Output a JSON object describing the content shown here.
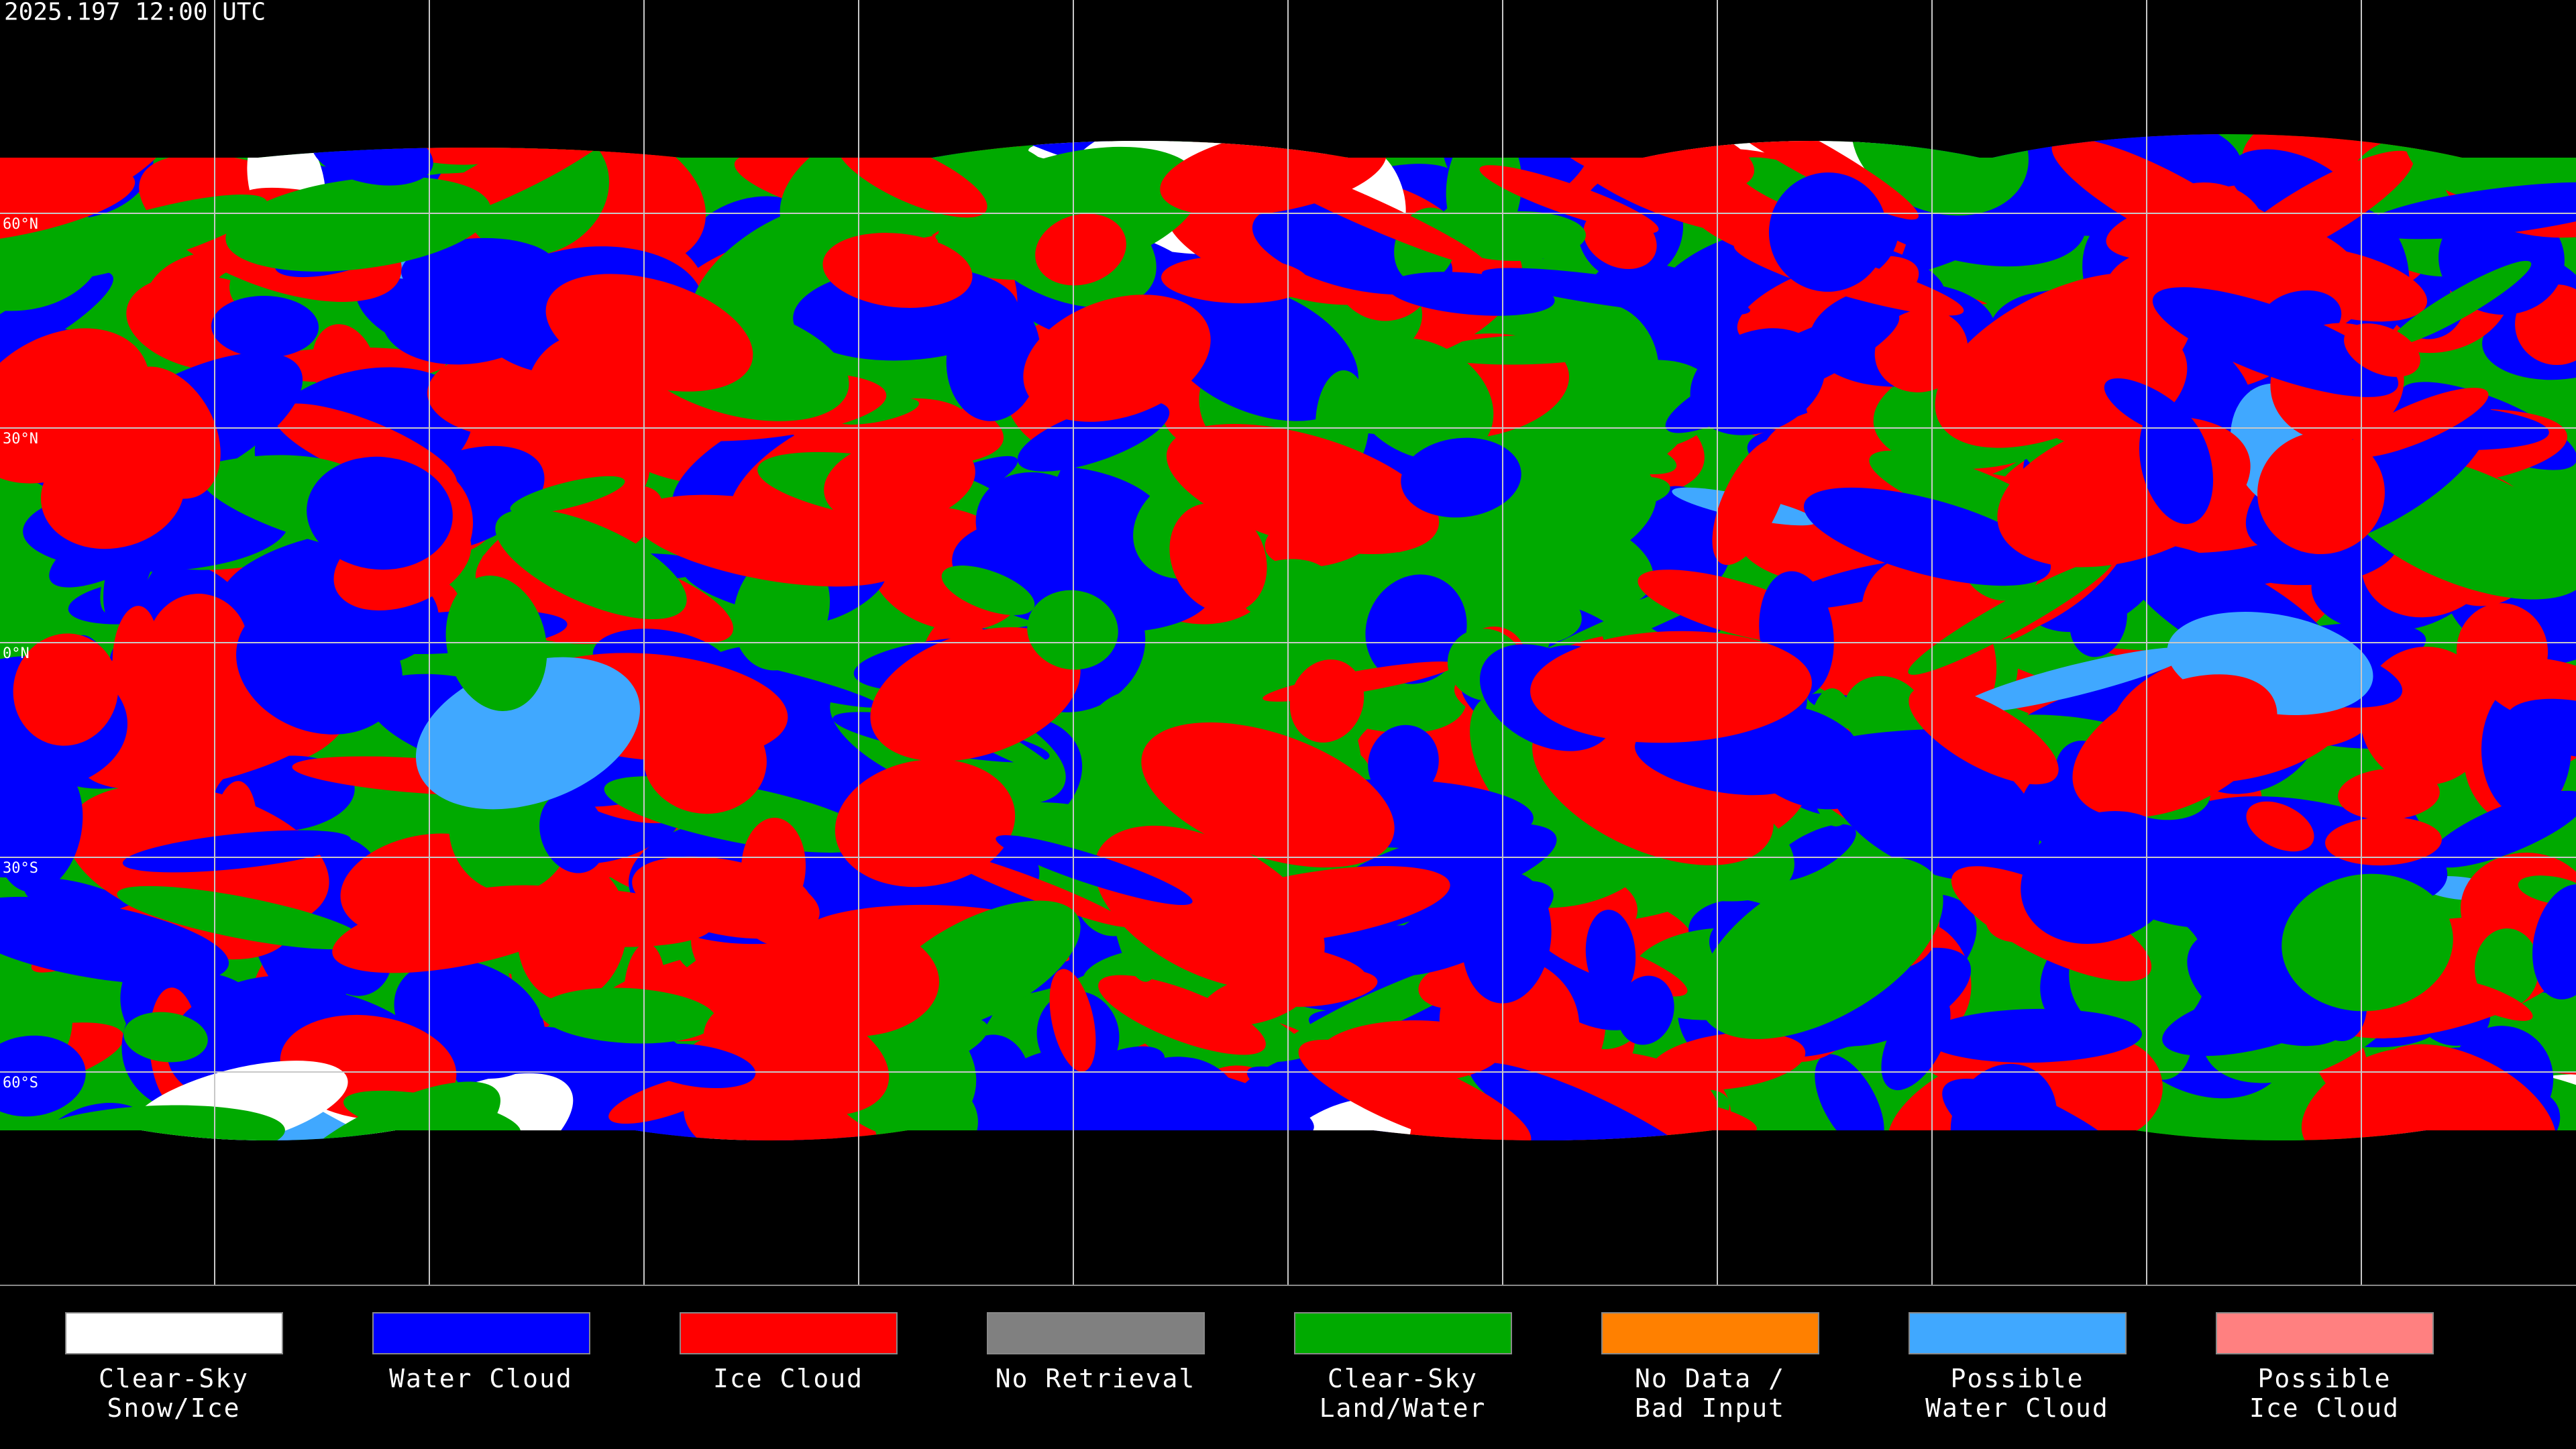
{
  "title": "2025.197 12:00 UTC",
  "grid_labels": [
    "60°N",
    "30°N",
    "0°N",
    "30°S",
    "60°S"
  ],
  "legend": [
    {
      "lines": [
        "Clear-Sky",
        "Snow/Ice"
      ],
      "color": "#ffffff"
    },
    {
      "lines": [
        "Water Cloud"
      ],
      "color": "#0000ff"
    },
    {
      "lines": [
        "Ice Cloud"
      ],
      "color": "#ff0000"
    },
    {
      "lines": [
        "No Retrieval"
      ],
      "color": "#808080"
    },
    {
      "lines": [
        "Clear-Sky",
        "Land/Water"
      ],
      "color": "#00aa00"
    },
    {
      "lines": [
        "No Data /",
        "Bad Input"
      ],
      "color": "#ff8000"
    },
    {
      "lines": [
        "Possible",
        "Water Cloud"
      ],
      "color": "#40a8ff"
    },
    {
      "lines": [
        "Possible",
        "Ice Cloud"
      ],
      "color": "#ff8080"
    }
  ]
}
